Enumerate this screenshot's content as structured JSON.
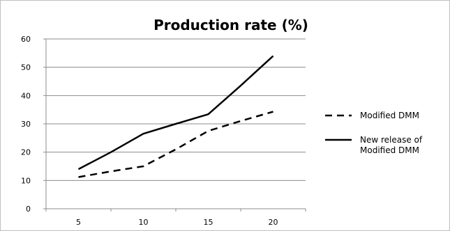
{
  "chart_data": {
    "type": "line",
    "title": "Production rate (%)",
    "xlabel": "",
    "ylabel": "",
    "x": [
      5,
      7.5,
      10,
      12.5,
      15,
      17.5,
      20
    ],
    "x_ticks": [
      "5",
      "10",
      "15",
      "20"
    ],
    "x_tick_values": [
      5,
      10,
      15,
      20
    ],
    "xlim": [
      2.5,
      22.5
    ],
    "y_ticks": [
      "0",
      "10",
      "20",
      "30",
      "40",
      "50",
      "60"
    ],
    "y_tick_values": [
      0,
      10,
      20,
      30,
      40,
      50,
      60
    ],
    "ylim": [
      0,
      60
    ],
    "grid": true,
    "legend_position": "right",
    "series": [
      {
        "name": "Modified DMM",
        "style": "dashed",
        "color": "#000000",
        "values": [
          11.2,
          13.2,
          15.0,
          21.0,
          27.5,
          31.0,
          34.3
        ]
      },
      {
        "name": "New release of Modified DMM",
        "style": "solid",
        "color": "#000000",
        "values": [
          14.0,
          20.0,
          26.5,
          30.0,
          33.4,
          43.5,
          54.0
        ]
      }
    ],
    "legend": [
      {
        "lines": [
          "Modified DMM"
        ]
      },
      {
        "lines": [
          "New release of",
          "Modified DMM"
        ]
      }
    ]
  }
}
